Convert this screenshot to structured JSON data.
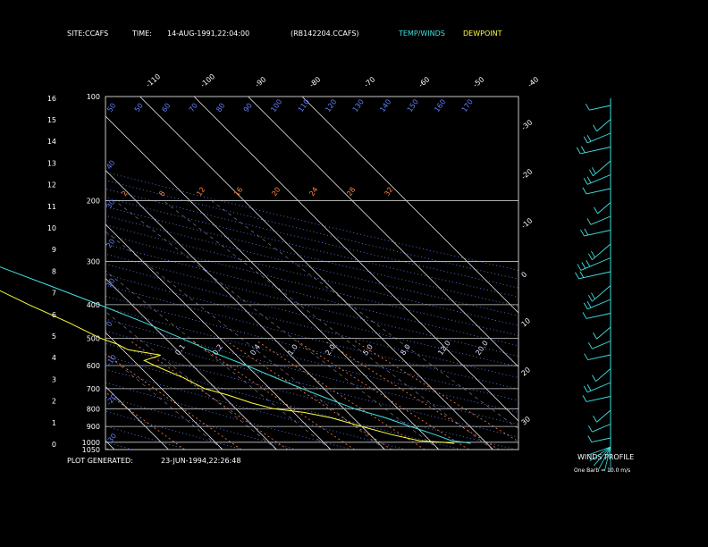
{
  "header": {
    "site_label": "SITE:",
    "site": "CCAFS",
    "time_label": "TIME:",
    "time": "14-AUG-1991,22:04:00",
    "file": "(RB142204.CCAFS)",
    "temp_winds_label": "TEMP/WINDS",
    "dewpoint_label": "DEWPOINT"
  },
  "footer": {
    "generated_label": "PLOT GENERATED:",
    "generated": "23-JUN-1994,22:26:48"
  },
  "winds_panel": {
    "title": "WINDS PROFILE",
    "note": "One Barb = 10.0 m/s"
  },
  "colors": {
    "temperature": "#40e0e0",
    "dewpoint": "#ffff40",
    "grid": "#c8c8c8",
    "isotherm": "#ffffff",
    "mixing_ratio": "#ff8040",
    "dry_adiabat": "#6080ff",
    "moist_adiabat": "#e0e0ff",
    "winds": "#40e0e0"
  },
  "chart_data": {
    "type": "line",
    "subtype": "skew-t log-p sounding",
    "pressure_axis_label_values": [
      100,
      200,
      300,
      400,
      500,
      600,
      700,
      800,
      900,
      1000,
      1050
    ],
    "height_km_ticks": [
      0,
      1,
      2,
      3,
      4,
      5,
      6,
      7,
      8,
      9,
      10,
      11,
      12,
      13,
      14,
      15,
      16
    ],
    "isotherm_labels_top": [
      -110,
      -100,
      -90,
      -80,
      -70,
      -60,
      -50,
      -40
    ],
    "isotherm_labels_right": [
      -30,
      -20,
      -10,
      0,
      10,
      20,
      30
    ],
    "dry_adiabat_labels": [
      "50",
      "50",
      "60",
      "70",
      "80",
      "90",
      "100",
      "110",
      "120",
      "130",
      "140",
      "150",
      "160",
      "170"
    ],
    "mixing_ratio_labels": [
      "2",
      "8",
      "12",
      "16",
      "20",
      "24",
      "28",
      "32"
    ],
    "moist_labels": [
      "0.1",
      "0.2",
      "0.4",
      "1.0",
      "2.0",
      "5.0",
      "8.0",
      "12.0",
      "20.0"
    ],
    "left_dry_adiabat_labels": [
      "40",
      "30",
      "20",
      "10",
      "0",
      "-10",
      "-20",
      "-30"
    ],
    "series": [
      {
        "name": "TEMP/WINDS",
        "pressure_hPa": [
          1008,
          1000,
          990,
          950,
          900,
          850,
          800,
          750,
          700,
          650,
          600,
          560,
          500,
          450,
          400,
          350,
          300,
          260,
          230,
          200,
          175,
          160,
          150,
          135,
          125,
          115,
          108,
          104,
          100
        ],
        "temp_C": [
          27,
          26,
          24,
          22,
          19,
          16,
          12,
          9,
          6,
          3,
          0,
          -3,
          -7,
          -11,
          -16,
          -22,
          -29,
          -35,
          -41,
          -49,
          -55,
          -60,
          -64,
          -68,
          -70,
          -68,
          -65,
          -63,
          -60
        ]
      },
      {
        "name": "DEWPOINT",
        "pressure_hPa": [
          1008,
          1000,
          990,
          950,
          900,
          850,
          820,
          800,
          770,
          730,
          700,
          650,
          600,
          580,
          560,
          540,
          520,
          500,
          450,
          400,
          350,
          300,
          260,
          230,
          200,
          190
        ],
        "temp_C": [
          24,
          22,
          18,
          14,
          10,
          6,
          2,
          -3,
          -6,
          -9,
          -12,
          -14,
          -17,
          -18,
          -14,
          -19,
          -20,
          -22,
          -25,
          -29,
          -33,
          -39,
          -45,
          -52,
          -60,
          -62
        ]
      }
    ],
    "winds_speed_m_s_approx": [
      5,
      8,
      10,
      12,
      15,
      12,
      10,
      8,
      10,
      12,
      15,
      20,
      22,
      25,
      20,
      15,
      10,
      8,
      12,
      15,
      18,
      20,
      15,
      10,
      8
    ]
  }
}
